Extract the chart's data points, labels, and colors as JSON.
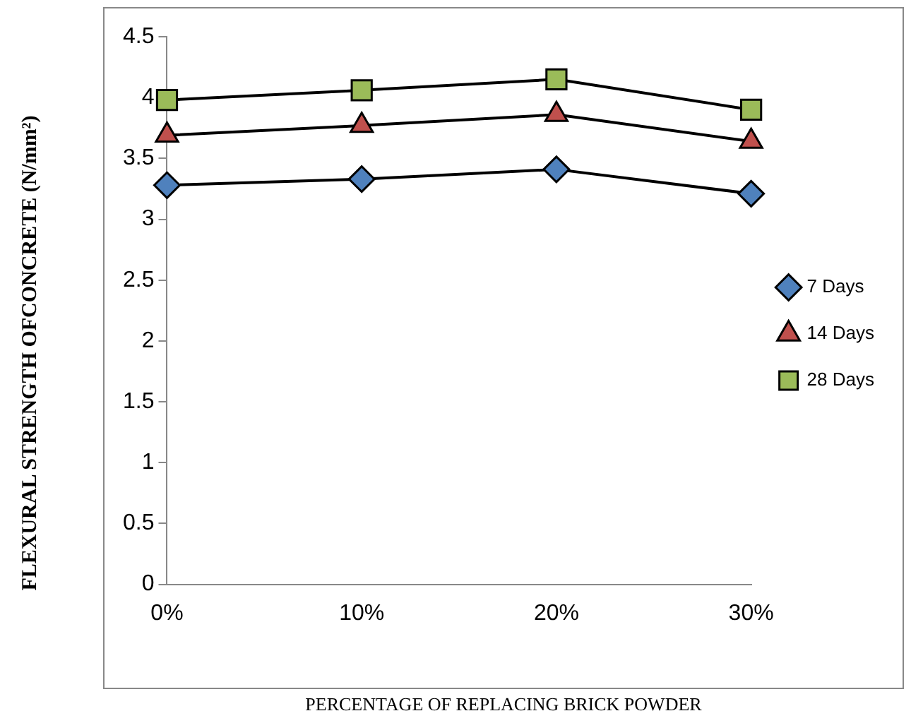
{
  "chart_data": {
    "type": "line",
    "xlabel": "PERCENTAGE OF REPLACING BRICK POWDER",
    "ylabel": "FLEXURAL STRENGTH OFCONCRETE (N/mm²)",
    "categories": [
      "0%",
      "10%",
      "20%",
      "30%"
    ],
    "series": [
      {
        "name": "7 Days",
        "color": "#4f81bd",
        "marker": "diamond",
        "values": [
          3.28,
          3.33,
          3.41,
          3.21
        ]
      },
      {
        "name": "14 Days",
        "color": "#c0504d",
        "marker": "triangle",
        "values": [
          3.69,
          3.77,
          3.86,
          3.64
        ]
      },
      {
        "name": "28 Days",
        "color": "#9bbb59",
        "marker": "square",
        "values": [
          3.98,
          4.06,
          4.15,
          3.9
        ]
      }
    ],
    "ylim": [
      0,
      4.5
    ],
    "yticks": [
      0,
      0.5,
      1,
      1.5,
      2,
      2.5,
      3,
      3.5,
      4,
      4.5
    ],
    "grid": false,
    "legend": "right",
    "line_style": "solid"
  }
}
